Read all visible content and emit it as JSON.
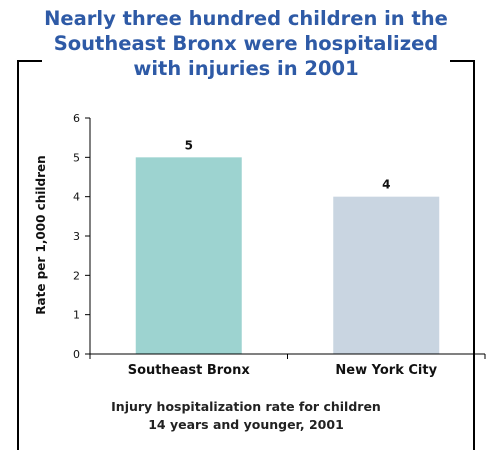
{
  "title_lines": [
    "Nearly three hundred children in the",
    "Southeast Bronx were hospitalized",
    "with injuries in 2001"
  ],
  "caption_lines": [
    "Injury hospitalization rate for children",
    "14 years and younger, 2001"
  ],
  "colors": {
    "title": "#2e5aa6",
    "bar_southeast_bronx": "#9dd3d0",
    "bar_new_york_city": "#c9d5e1"
  },
  "chart_data": {
    "type": "bar",
    "categories": [
      "Southeast Bronx",
      "New York City"
    ],
    "values": [
      5,
      4
    ],
    "data_labels": [
      "5",
      "4"
    ],
    "xlabel": "",
    "ylabel": "Rate per 1,000 children",
    "ylim": [
      0,
      6
    ],
    "yticks": [
      "0",
      "1",
      "2",
      "3",
      "4",
      "5",
      "6"
    ],
    "grid": false,
    "legend": "none"
  }
}
